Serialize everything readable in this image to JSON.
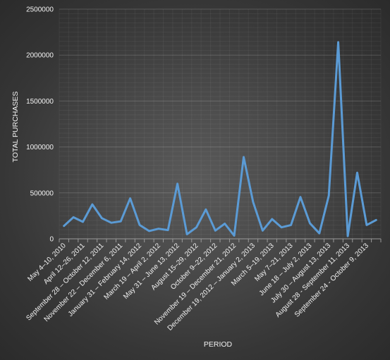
{
  "chart_data": {
    "type": "line",
    "xlabel": "PERIOD",
    "ylabel": "TOTAL PURCHASES",
    "ylim": [
      0,
      2500000
    ],
    "yticks": [
      0,
      500000,
      1000000,
      1500000,
      2000000,
      2500000
    ],
    "ytick_labels": [
      "0",
      "500000",
      "1000000",
      "1500000",
      "2000000",
      "2500000"
    ],
    "grid": true,
    "legend": "none",
    "line_color": "#5b9bd5",
    "categories": [
      "May 4–10, 2010",
      "",
      "April 12–26, 2011",
      "",
      "September 28 – October 12, 2011",
      "",
      "November 22 – December 6, 2011",
      "",
      "January 31 – February 14, 2012",
      "",
      "March 19 – April 2, 2012",
      "",
      "May 31 – June 13, 2012",
      "",
      "August 15–29, 2012",
      "",
      "October 9–22, 2012",
      "",
      "November 19 – December 21, 2012",
      "",
      "December 19, 2012 – January 2, 2013",
      "",
      "March 5–19, 2013",
      "",
      "May 7–21, 2013",
      "",
      "June 18 – July 2, 2013",
      "",
      "July 30 – August 13, 2013",
      "",
      "August 28 - September 11, 2013",
      "",
      "September 24 - October 9, 2013",
      ""
    ],
    "series": [
      {
        "values": [
          140000,
          235000,
          185000,
          375000,
          225000,
          175000,
          190000,
          440000,
          150000,
          85000,
          110000,
          95000,
          600000,
          50000,
          125000,
          320000,
          90000,
          165000,
          35000,
          890000,
          400000,
          90000,
          215000,
          125000,
          150000,
          455000,
          170000,
          60000,
          470000,
          2140000,
          30000,
          720000,
          150000,
          205000
        ]
      }
    ]
  }
}
